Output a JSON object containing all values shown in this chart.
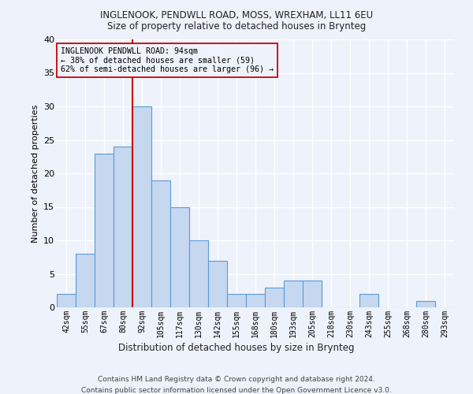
{
  "title1": "INGLENOOK, PENDWLL ROAD, MOSS, WREXHAM, LL11 6EU",
  "title2": "Size of property relative to detached houses in Brynteg",
  "xlabel": "Distribution of detached houses by size in Brynteg",
  "ylabel": "Number of detached properties",
  "footer1": "Contains HM Land Registry data © Crown copyright and database right 2024.",
  "footer2": "Contains public sector information licensed under the Open Government Licence v3.0.",
  "annotation_line1": "INGLENOOK PENDWLL ROAD: 94sqm",
  "annotation_line2": "← 38% of detached houses are smaller (59)",
  "annotation_line3": "62% of semi-detached houses are larger (96) →",
  "bar_color": "#c5d8f0",
  "bar_edge_color": "#5b9bd5",
  "ref_line_color": "#cc0000",
  "categories": [
    "42sqm",
    "55sqm",
    "67sqm",
    "80sqm",
    "92sqm",
    "105sqm",
    "117sqm",
    "130sqm",
    "142sqm",
    "155sqm",
    "168sqm",
    "180sqm",
    "193sqm",
    "205sqm",
    "218sqm",
    "230sqm",
    "243sqm",
    "255sqm",
    "268sqm",
    "280sqm",
    "293sqm"
  ],
  "values": [
    2,
    8,
    23,
    24,
    30,
    19,
    15,
    10,
    7,
    2,
    2,
    3,
    4,
    4,
    0,
    0,
    2,
    0,
    0,
    1,
    0
  ],
  "ylim": [
    0,
    40
  ],
  "yticks": [
    0,
    5,
    10,
    15,
    20,
    25,
    30,
    35,
    40
  ],
  "background_color": "#eef2fa",
  "grid_color": "#ffffff"
}
